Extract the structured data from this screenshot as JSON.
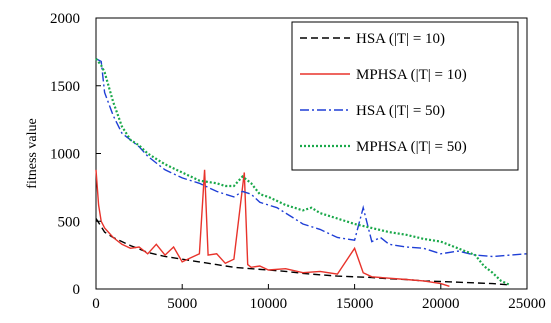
{
  "chart_data": {
    "type": "line",
    "title": "",
    "xlabel": "",
    "ylabel": "fitness value",
    "xlim": [
      0,
      25000
    ],
    "ylim": [
      0,
      2000
    ],
    "x_ticks": [
      "0",
      "5000",
      "10000",
      "15000",
      "20000",
      "25000"
    ],
    "y_ticks": [
      "0",
      "500",
      "1000",
      "1500",
      "2000"
    ],
    "grid": false,
    "legend_position": "top-right",
    "series": [
      {
        "name": "HSA (|T| = 10)",
        "color": "#000000",
        "style": "dashed",
        "x": [
          0,
          500,
          1000,
          2000,
          3000,
          4000,
          5000,
          6000,
          7000,
          8000,
          9000,
          10000,
          11000,
          12000,
          13000,
          14000,
          15000,
          16000,
          17000,
          18000,
          19000,
          20000,
          21000,
          22000,
          23000,
          24000
        ],
        "y": [
          520,
          420,
          380,
          320,
          270,
          240,
          220,
          200,
          180,
          160,
          150,
          140,
          130,
          115,
          105,
          95,
          90,
          85,
          75,
          70,
          60,
          55,
          50,
          45,
          40,
          30
        ]
      },
      {
        "name": "MPHSA (|T| = 10)",
        "color": "#e8332b",
        "style": "solid",
        "x": [
          0,
          150,
          300,
          500,
          1000,
          1500,
          2000,
          2500,
          3000,
          3500,
          4000,
          4500,
          5000,
          5500,
          6000,
          6300,
          6500,
          7000,
          7500,
          8000,
          8600,
          8800,
          9000,
          9500,
          10000,
          11000,
          12000,
          13000,
          14000,
          15000,
          15500,
          16000,
          17000,
          18000,
          19000,
          20000,
          20500
        ],
        "y": [
          880,
          620,
          500,
          450,
          380,
          330,
          300,
          310,
          260,
          330,
          250,
          310,
          200,
          230,
          260,
          880,
          250,
          260,
          190,
          220,
          860,
          180,
          160,
          170,
          140,
          150,
          120,
          130,
          110,
          300,
          120,
          90,
          80,
          70,
          60,
          40,
          20
        ]
      },
      {
        "name": "HSA (|T| = 50)",
        "color": "#1f3fd6",
        "style": "dashdot",
        "x": [
          0,
          300,
          500,
          1000,
          1500,
          2000,
          2500,
          3000,
          3500,
          4000,
          5000,
          6000,
          7000,
          7500,
          8000,
          8500,
          9000,
          9500,
          10000,
          10500,
          11000,
          11500,
          12000,
          13000,
          14000,
          15000,
          15500,
          16000,
          16500,
          17000,
          18000,
          19000,
          20000,
          21000,
          22000,
          23000,
          24000,
          25000
        ],
        "y": [
          1700,
          1680,
          1450,
          1280,
          1150,
          1100,
          1050,
          980,
          930,
          880,
          820,
          780,
          720,
          700,
          680,
          720,
          700,
          640,
          620,
          600,
          560,
          520,
          480,
          440,
          380,
          360,
          600,
          350,
          380,
          330,
          310,
          300,
          260,
          280,
          250,
          240,
          250,
          260
        ]
      },
      {
        "name": "MPHSA (|T| = 50)",
        "color": "#1aa84a",
        "style": "dotted",
        "x": [
          0,
          300,
          500,
          1000,
          1500,
          2000,
          2500,
          3000,
          3500,
          4000,
          5000,
          6000,
          7000,
          7500,
          8000,
          8500,
          9000,
          9500,
          10000,
          10500,
          11000,
          11500,
          12000,
          12500,
          13000,
          14000,
          15000,
          16000,
          17000,
          18000,
          19000,
          20000,
          21000,
          22000,
          22500,
          23000,
          23500,
          24000
        ],
        "y": [
          1700,
          1650,
          1600,
          1380,
          1200,
          1100,
          1060,
          1000,
          960,
          920,
          860,
          800,
          780,
          760,
          760,
          830,
          780,
          700,
          680,
          650,
          620,
          600,
          580,
          600,
          560,
          520,
          480,
          450,
          420,
          400,
          370,
          350,
          300,
          250,
          170,
          120,
          60,
          30
        ]
      }
    ]
  }
}
